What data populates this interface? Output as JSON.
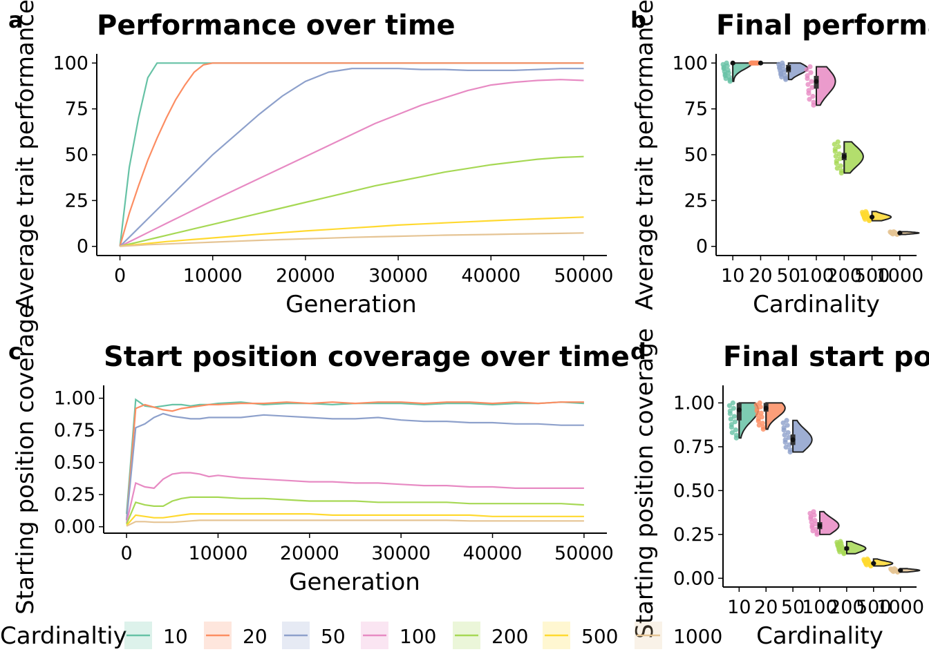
{
  "panels": {
    "a": {
      "label": "a",
      "title": "Performance over time",
      "xlabel": "Generation",
      "ylabel": "Average trait performance"
    },
    "b": {
      "label": "b",
      "title": "Final performance",
      "xlabel": "Cardinality",
      "ylabel": "Average trait performance"
    },
    "c": {
      "label": "c",
      "title": "Start position coverage over time",
      "xlabel": "Generation",
      "ylabel": "Starting position coverage"
    },
    "d": {
      "label": "d",
      "title": "Final start position coverage",
      "xlabel": "Cardinality",
      "ylabel": "Starting position coverage"
    }
  },
  "legend": {
    "title": "Cardinaltiy",
    "items": [
      {
        "label": "10",
        "color": "#66C2A5"
      },
      {
        "label": "20",
        "color": "#FC8D62"
      },
      {
        "label": "50",
        "color": "#8DA0CB"
      },
      {
        "label": "100",
        "color": "#E78AC3"
      },
      {
        "label": "200",
        "color": "#A6D854"
      },
      {
        "label": "500",
        "color": "#FFD92F"
      },
      {
        "label": "1000",
        "color": "#E5C494"
      }
    ]
  },
  "chart_data": [
    {
      "id": "a",
      "type": "line",
      "title": "Performance over time",
      "xlabel": "Generation",
      "ylabel": "Average trait performance",
      "xlim": [
        -2500,
        52500
      ],
      "ylim": [
        -5,
        105
      ],
      "xticks": [
        0,
        10000,
        20000,
        30000,
        40000,
        50000
      ],
      "yticks": [
        0,
        25,
        50,
        75,
        100
      ],
      "x": [
        0,
        1000,
        2000,
        3000,
        4000,
        5000,
        6000,
        7000,
        8000,
        9000,
        10000,
        12500,
        15000,
        17500,
        20000,
        22500,
        25000,
        27500,
        30000,
        32500,
        35000,
        37500,
        40000,
        42500,
        45000,
        47500,
        50000
      ],
      "series": [
        {
          "name": "10",
          "color": "#66C2A5",
          "values": [
            0,
            43,
            70,
            92,
            100,
            100,
            100,
            100,
            100,
            100,
            100,
            100,
            100,
            100,
            100,
            100,
            100,
            100,
            100,
            100,
            100,
            100,
            100,
            100,
            100,
            100,
            100
          ]
        },
        {
          "name": "20",
          "color": "#FC8D62",
          "values": [
            0,
            18,
            33,
            47,
            59,
            70,
            80,
            88,
            95,
            99,
            100,
            100,
            100,
            100,
            100,
            100,
            100,
            100,
            100,
            100,
            100,
            100,
            100,
            100,
            100,
            100,
            100
          ]
        },
        {
          "name": "50",
          "color": "#8DA0CB",
          "values": [
            0,
            5,
            10,
            15,
            20,
            25,
            30,
            35,
            40,
            45,
            50,
            61,
            72,
            82,
            90,
            95,
            97,
            97,
            97,
            96.5,
            96.5,
            96,
            96,
            96,
            96.5,
            97,
            97
          ]
        },
        {
          "name": "100",
          "color": "#E78AC3",
          "values": [
            0,
            2.5,
            5,
            7.5,
            10,
            12.5,
            15,
            17.5,
            20,
            22.5,
            25,
            31,
            37,
            43,
            49,
            55,
            61,
            67,
            72,
            77,
            81,
            85,
            88,
            89.5,
            90.5,
            91,
            90.5
          ]
        },
        {
          "name": "200",
          "color": "#A6D854",
          "values": [
            0,
            1.2,
            2.4,
            3.6,
            4.8,
            6,
            7.2,
            8.4,
            9.6,
            10.8,
            12,
            15,
            18,
            21,
            24,
            27,
            30,
            33,
            35.5,
            38,
            40.5,
            42.5,
            44.5,
            46,
            47.5,
            48.5,
            49
          ]
        },
        {
          "name": "500",
          "color": "#FFD92F",
          "values": [
            0,
            0.6,
            1.1,
            1.6,
            2.1,
            2.6,
            3.0,
            3.4,
            3.8,
            4.2,
            4.6,
            5.6,
            6.6,
            7.5,
            8.4,
            9.2,
            10,
            10.8,
            11.6,
            12.2,
            12.8,
            13.4,
            14,
            14.5,
            15,
            15.5,
            16
          ]
        },
        {
          "name": "1000",
          "color": "#E5C494",
          "values": [
            0,
            0.3,
            0.6,
            0.9,
            1.1,
            1.3,
            1.5,
            1.7,
            1.9,
            2.1,
            2.3,
            2.8,
            3.3,
            3.7,
            4.1,
            4.5,
            4.9,
            5.2,
            5.5,
            5.8,
            6.1,
            6.3,
            6.5,
            6.7,
            6.9,
            7.1,
            7.3
          ]
        }
      ]
    },
    {
      "id": "b",
      "type": "violin",
      "title": "Final performance",
      "xlabel": "Cardinality",
      "ylabel": "Average trait performance",
      "ylim": [
        -5,
        105
      ],
      "yticks": [
        0,
        25,
        50,
        75,
        100
      ],
      "categories": [
        "10",
        "20",
        "50",
        "100",
        "200",
        "500",
        "1000"
      ],
      "medians": [
        100,
        100,
        97,
        90,
        49,
        16,
        7.3
      ],
      "q1": [
        100,
        100,
        95,
        86,
        47,
        15.5,
        7.0
      ],
      "q3": [
        100,
        100,
        99,
        93,
        51,
        16.5,
        7.6
      ],
      "min": [
        90,
        100,
        91,
        77,
        40,
        14,
        6.5
      ],
      "max": [
        100,
        100,
        100,
        98,
        57,
        19,
        8
      ]
    },
    {
      "id": "c",
      "type": "line",
      "title": "Start position coverage over time",
      "xlabel": "Generation",
      "ylabel": "Starting position coverage",
      "xlim": [
        -2500,
        52500
      ],
      "ylim": [
        -0.05,
        1.1
      ],
      "xticks": [
        0,
        10000,
        20000,
        30000,
        40000,
        50000
      ],
      "yticks": [
        0.0,
        0.25,
        0.5,
        0.75,
        1.0
      ],
      "ytick_labels": [
        "0.00",
        "0.25",
        "0.50",
        "0.75",
        "1.00"
      ],
      "x": [
        0,
        1000,
        2000,
        3000,
        4000,
        5000,
        6000,
        7000,
        8000,
        9000,
        10000,
        12500,
        15000,
        17500,
        20000,
        22500,
        25000,
        27500,
        30000,
        32500,
        35000,
        37500,
        40000,
        42500,
        45000,
        47500,
        50000
      ],
      "series": [
        {
          "name": "10",
          "color": "#66C2A5",
          "values": [
            0.1,
            0.99,
            0.94,
            0.93,
            0.94,
            0.95,
            0.95,
            0.94,
            0.95,
            0.95,
            0.96,
            0.97,
            0.95,
            0.96,
            0.96,
            0.95,
            0.96,
            0.96,
            0.96,
            0.95,
            0.96,
            0.96,
            0.95,
            0.96,
            0.96,
            0.97,
            0.96
          ]
        },
        {
          "name": "20",
          "color": "#FC8D62",
          "values": [
            0.05,
            0.92,
            0.95,
            0.93,
            0.91,
            0.9,
            0.92,
            0.93,
            0.94,
            0.95,
            0.95,
            0.96,
            0.96,
            0.97,
            0.96,
            0.97,
            0.96,
            0.97,
            0.97,
            0.96,
            0.97,
            0.97,
            0.96,
            0.97,
            0.96,
            0.97,
            0.97
          ]
        },
        {
          "name": "50",
          "color": "#8DA0CB",
          "values": [
            0.05,
            0.77,
            0.8,
            0.85,
            0.88,
            0.86,
            0.85,
            0.84,
            0.84,
            0.85,
            0.85,
            0.85,
            0.87,
            0.86,
            0.85,
            0.84,
            0.84,
            0.85,
            0.83,
            0.82,
            0.82,
            0.81,
            0.81,
            0.8,
            0.8,
            0.79,
            0.79
          ]
        },
        {
          "name": "100",
          "color": "#E78AC3",
          "values": [
            0.03,
            0.34,
            0.31,
            0.3,
            0.37,
            0.41,
            0.42,
            0.42,
            0.41,
            0.39,
            0.4,
            0.38,
            0.37,
            0.36,
            0.35,
            0.35,
            0.34,
            0.34,
            0.33,
            0.32,
            0.32,
            0.31,
            0.31,
            0.3,
            0.3,
            0.3,
            0.3
          ]
        },
        {
          "name": "200",
          "color": "#A6D854",
          "values": [
            0.02,
            0.19,
            0.17,
            0.16,
            0.16,
            0.2,
            0.22,
            0.23,
            0.23,
            0.23,
            0.23,
            0.22,
            0.22,
            0.21,
            0.2,
            0.2,
            0.2,
            0.19,
            0.19,
            0.19,
            0.19,
            0.18,
            0.18,
            0.18,
            0.18,
            0.18,
            0.17
          ]
        },
        {
          "name": "500",
          "color": "#FFD92F",
          "values": [
            0.01,
            0.09,
            0.08,
            0.07,
            0.07,
            0.08,
            0.09,
            0.1,
            0.1,
            0.1,
            0.1,
            0.1,
            0.1,
            0.1,
            0.1,
            0.09,
            0.09,
            0.09,
            0.09,
            0.09,
            0.09,
            0.09,
            0.08,
            0.08,
            0.08,
            0.08,
            0.08
          ]
        },
        {
          "name": "1000",
          "color": "#E5C494",
          "values": [
            0.005,
            0.04,
            0.04,
            0.035,
            0.035,
            0.035,
            0.04,
            0.045,
            0.05,
            0.05,
            0.05,
            0.05,
            0.05,
            0.05,
            0.05,
            0.05,
            0.05,
            0.05,
            0.05,
            0.05,
            0.05,
            0.045,
            0.045,
            0.045,
            0.045,
            0.045,
            0.045
          ]
        }
      ]
    },
    {
      "id": "d",
      "type": "violin",
      "title": "Final start position coverage",
      "xlabel": "Cardinality",
      "ylabel": "Starting position coverage",
      "ylim": [
        -0.05,
        1.1
      ],
      "yticks": [
        0.0,
        0.25,
        0.5,
        0.75,
        1.0
      ],
      "ytick_labels": [
        "0.00",
        "0.25",
        "0.50",
        "0.75",
        "1.00"
      ],
      "categories": [
        "10",
        "20",
        "50",
        "100",
        "200",
        "500",
        "1000"
      ],
      "medians": [
        0.96,
        0.97,
        0.79,
        0.3,
        0.17,
        0.085,
        0.045
      ],
      "q1": [
        0.9,
        0.95,
        0.76,
        0.28,
        0.16,
        0.08,
        0.04
      ],
      "q3": [
        1.0,
        1.0,
        0.82,
        0.32,
        0.18,
        0.09,
        0.05
      ],
      "min": [
        0.8,
        0.85,
        0.72,
        0.25,
        0.14,
        0.07,
        0.035
      ],
      "max": [
        1.0,
        1.0,
        0.9,
        0.38,
        0.21,
        0.11,
        0.055
      ]
    }
  ]
}
